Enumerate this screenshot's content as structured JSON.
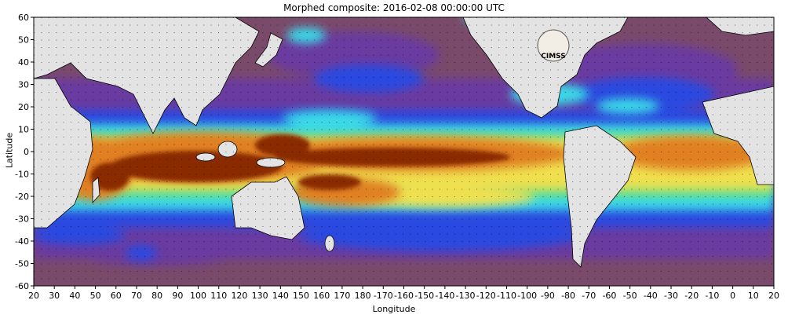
{
  "title": "Morphed composite: 2016-02-08 00:00:00 UTC",
  "xlabel": "Longitude",
  "ylabel": "Latitude",
  "logo_text": "CIMSS",
  "x_ticks": [
    "20",
    "30",
    "40",
    "50",
    "60",
    "70",
    "80",
    "90",
    "100",
    "110",
    "120",
    "130",
    "140",
    "150",
    "160",
    "170",
    "180",
    "-170",
    "-160",
    "-150",
    "-140",
    "-130",
    "-120",
    "-110",
    "-100",
    "-90",
    "-80",
    "-70",
    "-60",
    "-50",
    "-40",
    "-30",
    "-20",
    "-10",
    "0",
    "10",
    "20"
  ],
  "y_ticks": [
    "60",
    "50",
    "40",
    "30",
    "20",
    "10",
    "0",
    "-10",
    "-20",
    "-30",
    "-40",
    "-50",
    "-60"
  ],
  "colors": {
    "land": "#e3e3e3",
    "dry": "#7a4a6a",
    "purple": "#6a3aa0",
    "blue": "#2a4ae0",
    "cyan": "#3ad8e8",
    "green": "#6ae070",
    "yellow": "#f0e050",
    "orange": "#e08020",
    "brown": "#8a2a00"
  }
}
